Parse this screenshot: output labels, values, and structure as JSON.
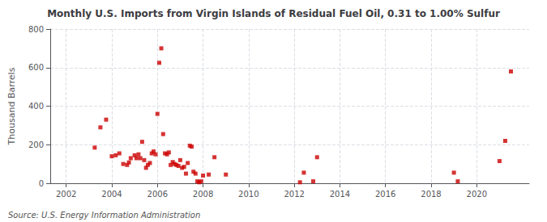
{
  "chart_data": {
    "type": "scatter",
    "title": "Monthly U.S. Imports from Virgin Islands of Residual Fuel Oil, 0.31 to 1.00% Sulfur",
    "ylabel": "Thousand Barrels",
    "annotations": [
      "Source: U.S. Energy Information Administration"
    ],
    "color": "#cc0000",
    "marker": "square",
    "grid": true,
    "xlim": [
      2001.3,
      2022.3
    ],
    "xticks": [
      2002,
      2004,
      2006,
      2008,
      2010,
      2012,
      2014,
      2016,
      2018,
      2020
    ],
    "ylim": [
      0,
      800
    ],
    "yticks": [
      0,
      200,
      400,
      600,
      800
    ],
    "x": [
      2003.25,
      2003.5,
      2003.75,
      2004.0,
      2004.17,
      2004.33,
      2004.5,
      2004.67,
      2004.75,
      2004.83,
      2005.0,
      2005.08,
      2005.17,
      2005.25,
      2005.33,
      2005.42,
      2005.5,
      2005.58,
      2005.67,
      2005.75,
      2005.83,
      2005.92,
      2006.0,
      2006.08,
      2006.17,
      2006.25,
      2006.33,
      2006.42,
      2006.5,
      2006.58,
      2006.67,
      2006.75,
      2006.83,
      2006.92,
      2007.0,
      2007.08,
      2007.17,
      2007.25,
      2007.33,
      2007.42,
      2007.5,
      2007.58,
      2007.67,
      2007.75,
      2007.83,
      2007.92,
      2008.0,
      2008.25,
      2008.5,
      2009.0,
      2012.25,
      2012.42,
      2012.83,
      2013.0,
      2019.0,
      2019.17,
      2021.0,
      2021.25,
      2021.5
    ],
    "values": [
      185,
      290,
      330,
      140,
      145,
      155,
      100,
      95,
      108,
      130,
      145,
      130,
      150,
      130,
      215,
      120,
      80,
      95,
      105,
      155,
      165,
      150,
      360,
      625,
      700,
      255,
      155,
      150,
      160,
      95,
      110,
      100,
      95,
      90,
      120,
      80,
      85,
      50,
      105,
      195,
      190,
      60,
      50,
      10,
      5,
      10,
      40,
      45,
      135,
      45,
      5,
      55,
      10,
      135,
      55,
      10,
      115,
      220,
      580
    ]
  }
}
